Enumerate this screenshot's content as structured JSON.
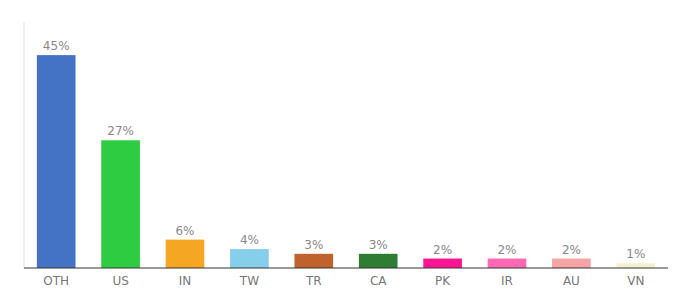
{
  "chart_data": {
    "type": "bar",
    "categories": [
      "OTH",
      "US",
      "IN",
      "TW",
      "TR",
      "CA",
      "PK",
      "IR",
      "AU",
      "VN"
    ],
    "values": [
      45,
      27,
      6,
      4,
      3,
      3,
      2,
      2,
      2,
      1
    ],
    "value_labels": [
      "45%",
      "27%",
      "6%",
      "4%",
      "3%",
      "3%",
      "2%",
      "2%",
      "2%",
      "1%"
    ],
    "colors": [
      "#4472c4",
      "#2ecc40",
      "#f5a623",
      "#87ceeb",
      "#c0622b",
      "#2e7d32",
      "#ff1493",
      "#ff69b4",
      "#f4a4a4",
      "#f5f0d0"
    ],
    "ylim": [
      0,
      52
    ],
    "data_labels": true,
    "tick_labels": "x"
  }
}
